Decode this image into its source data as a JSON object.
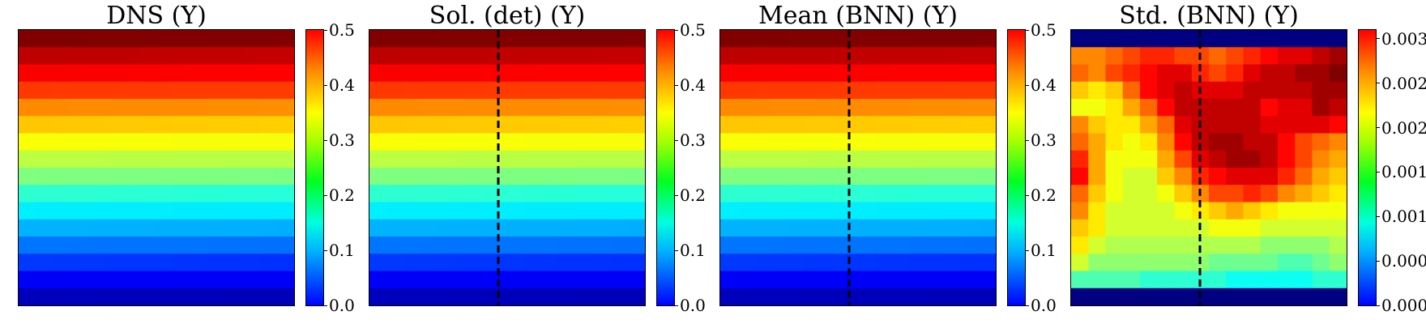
{
  "chart_data": [
    {
      "type": "heatmap",
      "title": "DNS (Y)",
      "grid": "16x16",
      "colormap": "jet",
      "vlim": [
        0.0,
        0.5
      ],
      "colorbar_ticks": [
        "0.0",
        "0.1",
        "0.2",
        "0.3",
        "0.4",
        "0.5"
      ],
      "row_values_top_to_bottom": [
        0.5,
        0.47,
        0.44,
        0.41,
        0.37,
        0.34,
        0.31,
        0.28,
        0.25,
        0.21,
        0.18,
        0.15,
        0.12,
        0.09,
        0.06,
        0.03
      ],
      "dashed_line": false
    },
    {
      "type": "heatmap",
      "title": "Sol. (det) (Y)",
      "grid": "16x16",
      "colormap": "jet",
      "vlim": [
        0.0,
        0.5
      ],
      "colorbar_ticks": [
        "0.0",
        "0.1",
        "0.2",
        "0.3",
        "0.4",
        "0.5"
      ],
      "row_values_top_to_bottom": [
        0.5,
        0.47,
        0.44,
        0.41,
        0.37,
        0.34,
        0.31,
        0.28,
        0.25,
        0.21,
        0.18,
        0.15,
        0.12,
        0.09,
        0.06,
        0.03
      ],
      "dashed_line": true
    },
    {
      "type": "heatmap",
      "title": "Mean (BNN) (Y)",
      "grid": "16x16",
      "colormap": "jet",
      "vlim": [
        0.0,
        0.5
      ],
      "colorbar_ticks": [
        "0.0",
        "0.1",
        "0.2",
        "0.3",
        "0.4",
        "0.5"
      ],
      "row_values_top_to_bottom": [
        0.5,
        0.47,
        0.44,
        0.41,
        0.37,
        0.34,
        0.31,
        0.28,
        0.25,
        0.21,
        0.18,
        0.15,
        0.12,
        0.09,
        0.06,
        0.03
      ],
      "dashed_line": true
    },
    {
      "type": "heatmap",
      "title": "Std. (BNN) (Y)",
      "grid": "16x16",
      "colormap": "jet",
      "vlim": [
        0.0,
        0.0031
      ],
      "colorbar_ticks": [
        "0.0000",
        "0.0005",
        "0.0010",
        "0.0015",
        "0.0020",
        "0.0025",
        "0.0030"
      ],
      "dashed_line": true,
      "values": [
        [
          0.0,
          0.0,
          0.0,
          0.0,
          0.0,
          0.0,
          0.0,
          0.0,
          0.0,
          0.0,
          0.0,
          0.0,
          0.0,
          0.0,
          0.0,
          0.0
        ],
        [
          0.0023,
          0.0023,
          0.0024,
          0.0025,
          0.0026,
          0.0026,
          0.0025,
          0.0025,
          0.0024,
          0.0025,
          0.0026,
          0.0027,
          0.0028,
          0.0028,
          0.0029,
          0.003
        ],
        [
          0.0024,
          0.0023,
          0.0025,
          0.0026,
          0.0027,
          0.0028,
          0.0028,
          0.0026,
          0.0025,
          0.0026,
          0.0028,
          0.0029,
          0.0029,
          0.003,
          0.003,
          0.0031
        ],
        [
          0.0021,
          0.002,
          0.0021,
          0.0024,
          0.0027,
          0.0028,
          0.0029,
          0.0028,
          0.0028,
          0.0028,
          0.0029,
          0.0029,
          0.0029,
          0.0029,
          0.003,
          0.003
        ],
        [
          0.0019,
          0.0019,
          0.002,
          0.0022,
          0.0024,
          0.0027,
          0.0029,
          0.0029,
          0.0029,
          0.0029,
          0.0029,
          0.0027,
          0.0028,
          0.0028,
          0.003,
          0.0029
        ],
        [
          0.0023,
          0.0021,
          0.002,
          0.002,
          0.0022,
          0.0024,
          0.0028,
          0.0029,
          0.0029,
          0.0029,
          0.0029,
          0.0028,
          0.0028,
          0.0028,
          0.0028,
          0.0027
        ],
        [
          0.0024,
          0.0022,
          0.002,
          0.0019,
          0.002,
          0.0023,
          0.0027,
          0.0029,
          0.003,
          0.003,
          0.0029,
          0.0029,
          0.0027,
          0.0025,
          0.0024,
          0.0023
        ],
        [
          0.0026,
          0.0022,
          0.0019,
          0.0019,
          0.0019,
          0.0022,
          0.0025,
          0.0028,
          0.0029,
          0.003,
          0.003,
          0.0029,
          0.0027,
          0.0025,
          0.0023,
          0.0022
        ],
        [
          0.0027,
          0.0022,
          0.0019,
          0.0018,
          0.0018,
          0.0021,
          0.0023,
          0.0026,
          0.0027,
          0.0028,
          0.0028,
          0.0028,
          0.0026,
          0.0024,
          0.0022,
          0.0021
        ],
        [
          0.0024,
          0.0021,
          0.0019,
          0.0018,
          0.0018,
          0.0019,
          0.0021,
          0.0023,
          0.0025,
          0.0025,
          0.0026,
          0.0025,
          0.0023,
          0.0022,
          0.0021,
          0.002
        ],
        [
          0.0023,
          0.002,
          0.0018,
          0.0018,
          0.0018,
          0.0018,
          0.0019,
          0.002,
          0.0021,
          0.0022,
          0.0021,
          0.002,
          0.0019,
          0.0019,
          0.0019,
          0.0019
        ],
        [
          0.0021,
          0.002,
          0.0018,
          0.0018,
          0.0018,
          0.0018,
          0.0018,
          0.0018,
          0.0019,
          0.0019,
          0.0019,
          0.0018,
          0.0018,
          0.0018,
          0.0018,
          0.0018
        ],
        [
          0.002,
          0.0018,
          0.0017,
          0.0017,
          0.0017,
          0.0017,
          0.0017,
          0.0017,
          0.0017,
          0.0017,
          0.0017,
          0.0016,
          0.0016,
          0.0016,
          0.0016,
          0.0017
        ],
        [
          0.0018,
          0.0016,
          0.0016,
          0.0016,
          0.0016,
          0.0016,
          0.0016,
          0.0016,
          0.0015,
          0.0015,
          0.0015,
          0.0015,
          0.0014,
          0.0014,
          0.0015,
          0.0016
        ],
        [
          0.0014,
          0.0014,
          0.0014,
          0.0014,
          0.0013,
          0.0013,
          0.0013,
          0.0013,
          0.0013,
          0.0012,
          0.0012,
          0.0012,
          0.0012,
          0.0012,
          0.0013,
          0.0013
        ],
        [
          0.0,
          0.0,
          0.0,
          0.0,
          0.0,
          0.0,
          0.0,
          0.0,
          0.0,
          0.0,
          0.0,
          0.0,
          0.0,
          0.0,
          0.0,
          0.0
        ]
      ]
    }
  ]
}
